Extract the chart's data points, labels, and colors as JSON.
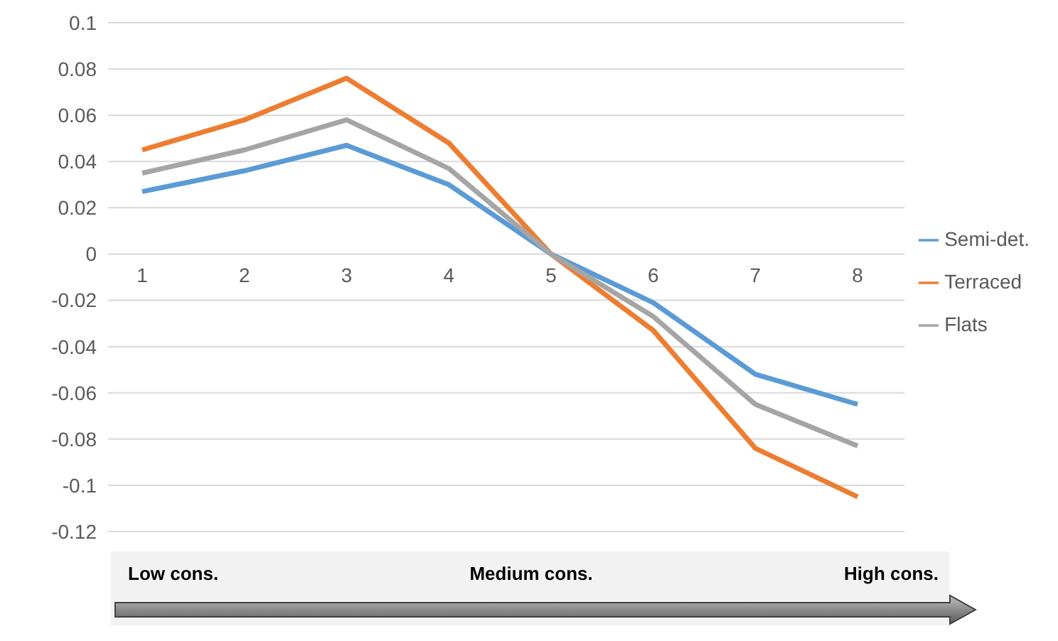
{
  "chart_data": {
    "type": "line",
    "categories": [
      "1",
      "2",
      "3",
      "4",
      "5",
      "6",
      "7",
      "8"
    ],
    "series": [
      {
        "name": "Semi-det.",
        "color": "#5b9bd5",
        "values": [
          0.027,
          0.036,
          0.047,
          0.03,
          0,
          -0.021,
          -0.052,
          -0.065
        ]
      },
      {
        "name": "Terraced",
        "color": "#ed7d31",
        "values": [
          0.045,
          0.058,
          0.076,
          0.048,
          0,
          -0.033,
          -0.084,
          -0.105
        ]
      },
      {
        "name": "Flats",
        "color": "#a5a5a5",
        "values": [
          0.035,
          0.045,
          0.058,
          0.037,
          0,
          -0.027,
          -0.065,
          -0.083
        ]
      }
    ],
    "ylim": [
      -0.12,
      0.1
    ],
    "yticks": [
      -0.12,
      -0.1,
      -0.08,
      -0.06,
      -0.04,
      -0.02,
      0,
      0.02,
      0.04,
      0.06,
      0.08,
      0.1
    ],
    "grid": "y",
    "legend": "right",
    "marker": "none",
    "line_style": "solid",
    "annotations": [
      "Low cons.",
      "Medium cons.",
      "High cons."
    ]
  }
}
